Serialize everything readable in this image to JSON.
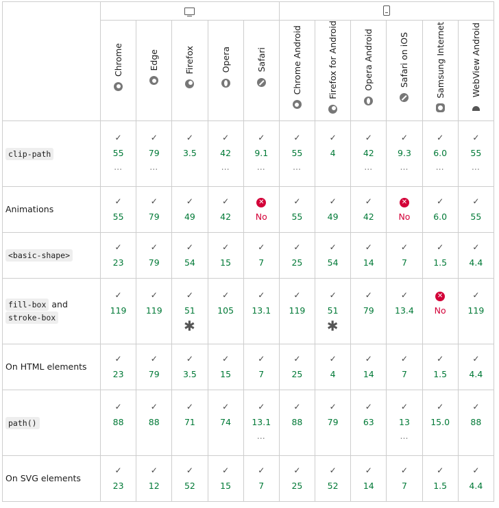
{
  "platforms": [
    {
      "name": "desktop",
      "icon": "desktop-icon"
    },
    {
      "name": "mobile",
      "icon": "mobile-icon"
    }
  ],
  "browsers": [
    {
      "name": "Chrome",
      "icon": "chrome-icon"
    },
    {
      "name": "Edge",
      "icon": "edge-icon"
    },
    {
      "name": "Firefox",
      "icon": "firefox-icon"
    },
    {
      "name": "Opera",
      "icon": "opera-icon"
    },
    {
      "name": "Safari",
      "icon": "safari-icon"
    },
    {
      "name": "Chrome Android",
      "icon": "chrome-icon"
    },
    {
      "name": "Firefox for Android",
      "icon": "firefox-icon"
    },
    {
      "name": "Opera Android",
      "icon": "opera-icon"
    },
    {
      "name": "Safari on iOS",
      "icon": "safari-icon"
    },
    {
      "name": "Samsung Internet",
      "icon": "samsung-internet-icon"
    },
    {
      "name": "WebView Android",
      "icon": "android-icon"
    }
  ],
  "features": [
    {
      "label_parts": [
        {
          "code": true,
          "text": "clip-path"
        }
      ],
      "cells": [
        {
          "v": "55",
          "s": "yes",
          "n": "dots"
        },
        {
          "v": "79",
          "s": "yes",
          "n": "dots"
        },
        {
          "v": "3.5",
          "s": "yes",
          "n": ""
        },
        {
          "v": "42",
          "s": "yes",
          "n": "dots"
        },
        {
          "v": "9.1",
          "s": "yes",
          "n": "dots"
        },
        {
          "v": "55",
          "s": "yes",
          "n": "dots"
        },
        {
          "v": "4",
          "s": "yes",
          "n": ""
        },
        {
          "v": "42",
          "s": "yes",
          "n": "dots"
        },
        {
          "v": "9.3",
          "s": "yes",
          "n": "dots"
        },
        {
          "v": "6.0",
          "s": "yes",
          "n": "dots"
        },
        {
          "v": "55",
          "s": "yes",
          "n": "dots"
        }
      ]
    },
    {
      "label_parts": [
        {
          "code": false,
          "text": "Animations"
        }
      ],
      "cells": [
        {
          "v": "55",
          "s": "yes",
          "n": ""
        },
        {
          "v": "79",
          "s": "yes",
          "n": ""
        },
        {
          "v": "49",
          "s": "yes",
          "n": ""
        },
        {
          "v": "42",
          "s": "yes",
          "n": ""
        },
        {
          "v": "No",
          "s": "no",
          "n": ""
        },
        {
          "v": "55",
          "s": "yes",
          "n": ""
        },
        {
          "v": "49",
          "s": "yes",
          "n": ""
        },
        {
          "v": "42",
          "s": "yes",
          "n": ""
        },
        {
          "v": "No",
          "s": "no",
          "n": ""
        },
        {
          "v": "6.0",
          "s": "yes",
          "n": ""
        },
        {
          "v": "55",
          "s": "yes",
          "n": ""
        }
      ]
    },
    {
      "label_parts": [
        {
          "code": true,
          "text": "<basic-shape>"
        }
      ],
      "cells": [
        {
          "v": "23",
          "s": "yes",
          "n": ""
        },
        {
          "v": "79",
          "s": "yes",
          "n": ""
        },
        {
          "v": "54",
          "s": "yes",
          "n": ""
        },
        {
          "v": "15",
          "s": "yes",
          "n": ""
        },
        {
          "v": "7",
          "s": "yes",
          "n": ""
        },
        {
          "v": "25",
          "s": "yes",
          "n": ""
        },
        {
          "v": "54",
          "s": "yes",
          "n": ""
        },
        {
          "v": "14",
          "s": "yes",
          "n": ""
        },
        {
          "v": "7",
          "s": "yes",
          "n": ""
        },
        {
          "v": "1.5",
          "s": "yes",
          "n": ""
        },
        {
          "v": "4.4",
          "s": "yes",
          "n": ""
        }
      ]
    },
    {
      "label_parts": [
        {
          "code": true,
          "text": "fill-box"
        },
        {
          "code": false,
          "text": " and "
        },
        {
          "code": true,
          "text": "stroke-box",
          "break_before": true
        }
      ],
      "cells": [
        {
          "v": "119",
          "s": "yes",
          "n": ""
        },
        {
          "v": "119",
          "s": "yes",
          "n": ""
        },
        {
          "v": "51",
          "s": "yes",
          "n": "star"
        },
        {
          "v": "105",
          "s": "yes",
          "n": ""
        },
        {
          "v": "13.1",
          "s": "yes",
          "n": ""
        },
        {
          "v": "119",
          "s": "yes",
          "n": ""
        },
        {
          "v": "51",
          "s": "yes",
          "n": "star"
        },
        {
          "v": "79",
          "s": "yes",
          "n": ""
        },
        {
          "v": "13.4",
          "s": "yes",
          "n": ""
        },
        {
          "v": "No",
          "s": "no",
          "n": ""
        },
        {
          "v": "119",
          "s": "yes",
          "n": ""
        }
      ]
    },
    {
      "label_parts": [
        {
          "code": false,
          "text": "On HTML elements"
        }
      ],
      "cells": [
        {
          "v": "23",
          "s": "yes",
          "n": ""
        },
        {
          "v": "79",
          "s": "yes",
          "n": ""
        },
        {
          "v": "3.5",
          "s": "yes",
          "n": ""
        },
        {
          "v": "15",
          "s": "yes",
          "n": ""
        },
        {
          "v": "7",
          "s": "yes",
          "n": ""
        },
        {
          "v": "25",
          "s": "yes",
          "n": ""
        },
        {
          "v": "4",
          "s": "yes",
          "n": ""
        },
        {
          "v": "14",
          "s": "yes",
          "n": ""
        },
        {
          "v": "7",
          "s": "yes",
          "n": ""
        },
        {
          "v": "1.5",
          "s": "yes",
          "n": ""
        },
        {
          "v": "4.4",
          "s": "yes",
          "n": ""
        }
      ]
    },
    {
      "label_parts": [
        {
          "code": true,
          "text": "path()"
        }
      ],
      "cells": [
        {
          "v": "88",
          "s": "yes",
          "n": ""
        },
        {
          "v": "88",
          "s": "yes",
          "n": ""
        },
        {
          "v": "71",
          "s": "yes",
          "n": ""
        },
        {
          "v": "74",
          "s": "yes",
          "n": ""
        },
        {
          "v": "13.1",
          "s": "yes",
          "n": "dots"
        },
        {
          "v": "88",
          "s": "yes",
          "n": ""
        },
        {
          "v": "79",
          "s": "yes",
          "n": ""
        },
        {
          "v": "63",
          "s": "yes",
          "n": ""
        },
        {
          "v": "13",
          "s": "yes",
          "n": "dots"
        },
        {
          "v": "15.0",
          "s": "yes",
          "n": ""
        },
        {
          "v": "88",
          "s": "yes",
          "n": ""
        }
      ]
    },
    {
      "label_parts": [
        {
          "code": false,
          "text": "On SVG elements"
        }
      ],
      "cells": [
        {
          "v": "23",
          "s": "yes",
          "n": ""
        },
        {
          "v": "12",
          "s": "yes",
          "n": ""
        },
        {
          "v": "52",
          "s": "yes",
          "n": ""
        },
        {
          "v": "15",
          "s": "yes",
          "n": ""
        },
        {
          "v": "7",
          "s": "yes",
          "n": ""
        },
        {
          "v": "25",
          "s": "yes",
          "n": ""
        },
        {
          "v": "52",
          "s": "yes",
          "n": ""
        },
        {
          "v": "14",
          "s": "yes",
          "n": ""
        },
        {
          "v": "7",
          "s": "yes",
          "n": ""
        },
        {
          "v": "1.5",
          "s": "yes",
          "n": ""
        },
        {
          "v": "4.4",
          "s": "yes",
          "n": ""
        }
      ]
    }
  ],
  "symbols": {
    "check": "✓",
    "cross": "✕",
    "dots": "…",
    "star": "✱"
  },
  "colors": {
    "supported": "#007936",
    "unsupported": "#d30038",
    "border": "#cdcdcd"
  }
}
